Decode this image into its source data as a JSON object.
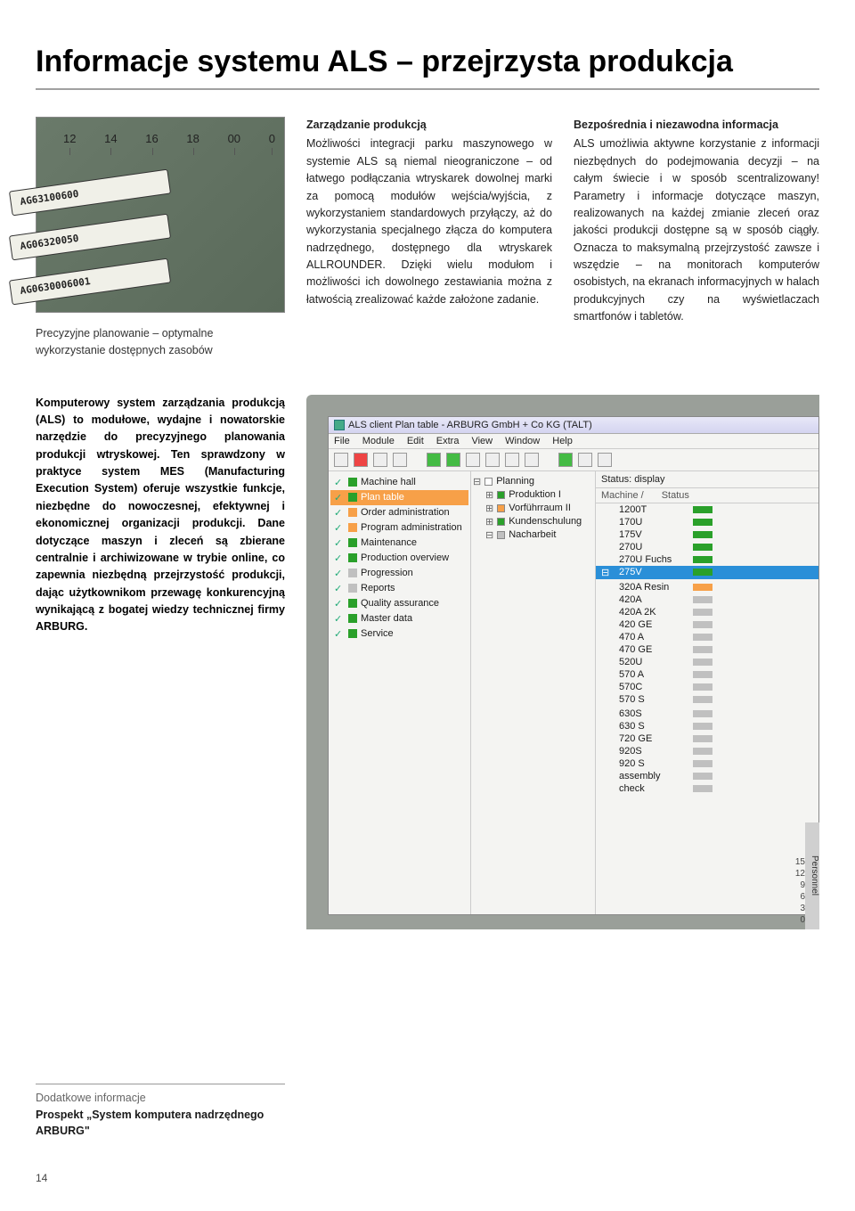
{
  "page_title": "Informacje systemu ALS – przejrzysta produkcja",
  "photo": {
    "ticks": [
      "12",
      "14",
      "16",
      "18",
      "00",
      "0"
    ],
    "labels": [
      "AG63100600",
      "AG06320050",
      "AG0630006001"
    ],
    "caption": "Precyzyjne planowanie – optymalne wykorzystanie dostępnych zasobów"
  },
  "col1": {
    "heading": "Zarządzanie produkcją",
    "body": "Możliwości integracji parku maszynowego w systemie ALS są niemal nieograniczone – od łatwego podłączania wtryskarek dowolnej marki za pomocą modułów wejścia/wyjścia, z wykorzystaniem standardowych przyłączy, aż do wykorzystania specjalnego złącza do komputera nadrzędnego, dostępnego dla wtryskarek ALLROUNDER. Dzięki wielu modułom i możliwości ich dowolnego zestawiania można z łatwością zrealizować każde założone zadanie."
  },
  "col2": {
    "heading": "Bezpośrednia i niezawodna informacja",
    "body": "ALS umożliwia aktywne korzystanie z informacji niezbędnych do podejmowania decyzji – na całym świecie i w sposób scentralizowany! Parametry i informacje dotyczące maszyn, realizowanych na każdej zmianie zleceń oraz jakości produkcji dostępne są w sposób ciągły. Oznacza to maksymalną przejrzystość zawsze i wszędzie – na monitorach komputerów osobistych, na ekranach informacyjnych w halach produkcyjnych czy na wyświetlaczach smartfonów i tabletów."
  },
  "intro": "Komputerowy system zarządzania produkcją (ALS) to modułowe, wydajne i nowatorskie narzędzie do precyzyjnego planowania produkcji wtryskowej. Ten sprawdzony w praktyce system MES (Manufacturing Execution System) oferuje wszystkie funkcje, niezbędne do nowoczesnej, efektywnej i ekonomicznej organizacji produkcji. Dane dotyczące maszyn i zleceń są zbierane centralnie i archiwizowane w trybie online, co zapewnia niezbędną przejrzystość produkcji, dając użytkownikom przewagę konkurencyjną wynikającą z bogatej wiedzy technicznej firmy ARBURG.",
  "als": {
    "titlebar": "ALS client Plan table - ARBURG GmbH + Co KG (TALT)",
    "menu": [
      "File",
      "Module",
      "Edit",
      "Extra",
      "View",
      "Window",
      "Help"
    ],
    "nav": [
      {
        "label": "Machine hall",
        "color": "#2aa02a",
        "sel": false
      },
      {
        "label": "Plan table",
        "color": "#2aa02a",
        "sel": true
      },
      {
        "label": "Order administration",
        "color": "#f7a048",
        "sel": false
      },
      {
        "label": "Program administration",
        "color": "#f7a048",
        "sel": false
      },
      {
        "label": "Maintenance",
        "color": "#2aa02a",
        "sel": false
      },
      {
        "label": "Production overview",
        "color": "#2aa02a",
        "sel": false
      },
      {
        "label": "Progression",
        "color": "#c0c0c0",
        "sel": false
      },
      {
        "label": "Reports",
        "color": "#c0c0c0",
        "sel": false
      },
      {
        "label": "Quality assurance",
        "color": "#2aa02a",
        "sel": false
      },
      {
        "label": "Master data",
        "color": "#2aa02a",
        "sel": false
      },
      {
        "label": "Service",
        "color": "#2aa02a",
        "sel": false
      }
    ],
    "tree": [
      {
        "label": "Planning",
        "color": "#ffffff",
        "indent": 0,
        "prefix": "⊟"
      },
      {
        "label": "Produktion I",
        "color": "#2aa02a",
        "indent": 1,
        "prefix": "⊞"
      },
      {
        "label": "Vorführraum II",
        "color": "#f7a048",
        "indent": 1,
        "prefix": "⊞"
      },
      {
        "label": "Kundenschulung",
        "color": "#2aa02a",
        "indent": 1,
        "prefix": "⊞"
      },
      {
        "label": "Nacharbeit",
        "color": "#c0c0c0",
        "indent": 1,
        "prefix": "⊟"
      }
    ],
    "status_header": "Status: display",
    "status_cols": [
      "Machine /",
      "Status"
    ],
    "machines": [
      {
        "name": "1200T",
        "color": "#2aa02a",
        "sel": false
      },
      {
        "name": "170U",
        "color": "#2aa02a",
        "sel": false
      },
      {
        "name": "175V",
        "color": "#2aa02a",
        "sel": false
      },
      {
        "name": "270U",
        "color": "#2aa02a",
        "sel": false
      },
      {
        "name": "270U Fuchs",
        "color": "#2aa02a",
        "sel": false
      },
      {
        "name": "275V",
        "color": "#2aa02a",
        "sel": true
      },
      {
        "name": "",
        "color": "",
        "sel": false
      },
      {
        "name": "320A Resin",
        "color": "#f7a048",
        "sel": false
      },
      {
        "name": "420A",
        "color": "#c0c0c0",
        "sel": false
      },
      {
        "name": "420A 2K",
        "color": "#c0c0c0",
        "sel": false
      },
      {
        "name": "420 GE",
        "color": "#c0c0c0",
        "sel": false
      },
      {
        "name": "470 A",
        "color": "#c0c0c0",
        "sel": false
      },
      {
        "name": "470 GE",
        "color": "#c0c0c0",
        "sel": false
      },
      {
        "name": "520U",
        "color": "#c0c0c0",
        "sel": false
      },
      {
        "name": "570 A",
        "color": "#c0c0c0",
        "sel": false
      },
      {
        "name": "570C",
        "color": "#c0c0c0",
        "sel": false
      },
      {
        "name": "570 S",
        "color": "#c0c0c0",
        "sel": false
      },
      {
        "name": "",
        "color": "",
        "sel": false
      },
      {
        "name": "630S",
        "color": "#c0c0c0",
        "sel": false
      },
      {
        "name": "630 S",
        "color": "#c0c0c0",
        "sel": false
      },
      {
        "name": "720 GE",
        "color": "#c0c0c0",
        "sel": false
      },
      {
        "name": "920S",
        "color": "#c0c0c0",
        "sel": false
      },
      {
        "name": "920 S",
        "color": "#c0c0c0",
        "sel": false
      },
      {
        "name": "assembly",
        "color": "#c0c0c0",
        "sel": false
      },
      {
        "name": "check",
        "color": "#c0c0c0",
        "sel": false
      }
    ],
    "personnel_label": "Personnel",
    "personnel_nums": [
      "15",
      "12",
      "9",
      "6",
      "3",
      "0"
    ]
  },
  "extra": {
    "label": "Dodatkowe informacje",
    "link": "Prospekt „System komputera nadrzędnego ARBURG\""
  },
  "page_num": "14"
}
